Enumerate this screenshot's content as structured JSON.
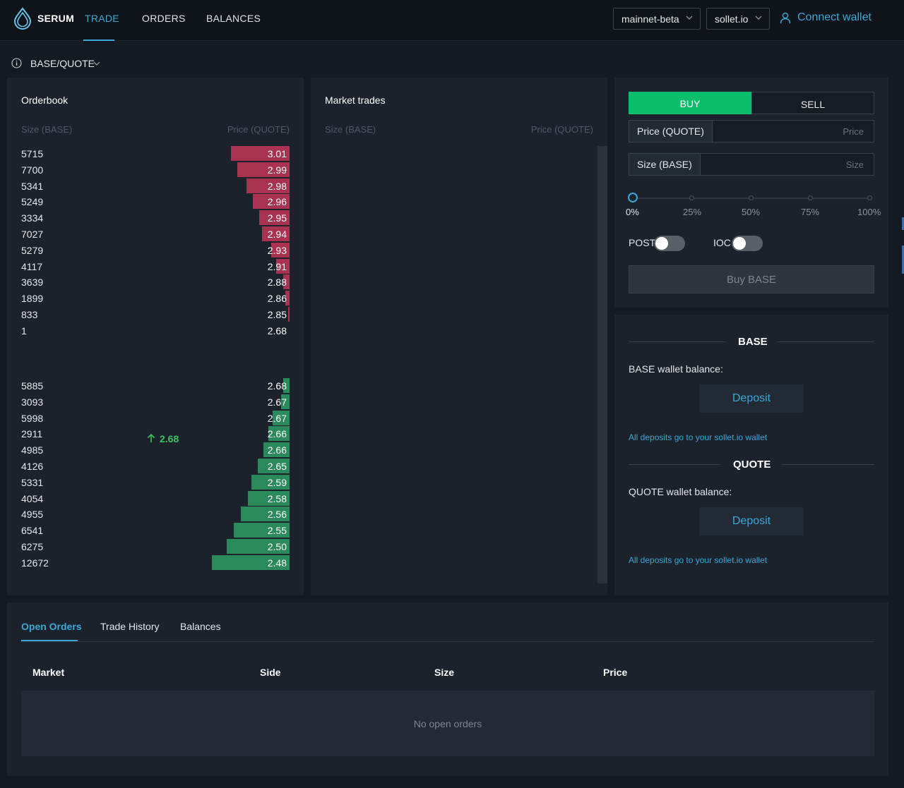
{
  "header": {
    "brand": "SERUM",
    "nav": [
      "TRADE",
      "ORDERS",
      "BALANCES"
    ],
    "network": "mainnet-beta",
    "wallet_provider": "sollet.io",
    "connect_label": "Connect wallet"
  },
  "market": {
    "name": "BASE/QUOTE"
  },
  "orderbook": {
    "title": "Orderbook",
    "size_header": "Size (BASE)",
    "price_header": "Price (QUOTE)",
    "asks": [
      {
        "size": "5715",
        "price": "3.01",
        "depth": 0.75
      },
      {
        "size": "7700",
        "price": "2.99",
        "depth": 0.67
      },
      {
        "size": "5341",
        "price": "2.98",
        "depth": 0.55
      },
      {
        "size": "5249",
        "price": "2.96",
        "depth": 0.47
      },
      {
        "size": "3334",
        "price": "2.95",
        "depth": 0.39
      },
      {
        "size": "7027",
        "price": "2.94",
        "depth": 0.35
      },
      {
        "size": "5279",
        "price": "2.93",
        "depth": 0.24
      },
      {
        "size": "4117",
        "price": "2.91",
        "depth": 0.17
      },
      {
        "size": "3639",
        "price": "2.88",
        "depth": 0.08
      },
      {
        "size": "1899",
        "price": "2.86",
        "depth": 0.05
      },
      {
        "size": "833",
        "price": "2.85",
        "depth": 0.02
      },
      {
        "size": "1",
        "price": "2.68",
        "depth": 0.0
      }
    ],
    "mid_price": "2.68",
    "bids": [
      {
        "size": "5885",
        "price": "2.68",
        "depth": 0.08
      },
      {
        "size": "3093",
        "price": "2.67",
        "depth": 0.11
      },
      {
        "size": "5998",
        "price": "2.67",
        "depth": 0.22
      },
      {
        "size": "2911",
        "price": "2.66",
        "depth": 0.27
      },
      {
        "size": "4985",
        "price": "2.66",
        "depth": 0.34
      },
      {
        "size": "4126",
        "price": "2.65",
        "depth": 0.41
      },
      {
        "size": "5331",
        "price": "2.59",
        "depth": 0.49
      },
      {
        "size": "4054",
        "price": "2.58",
        "depth": 0.54
      },
      {
        "size": "4955",
        "price": "2.56",
        "depth": 0.63
      },
      {
        "size": "6541",
        "price": "2.55",
        "depth": 0.72
      },
      {
        "size": "6275",
        "price": "2.50",
        "depth": 0.81
      },
      {
        "size": "12672",
        "price": "2.48",
        "depth": 1.0
      }
    ]
  },
  "market_trades": {
    "title": "Market trades",
    "size_header": "Size (BASE)",
    "price_header": "Price (QUOTE)"
  },
  "order_form": {
    "buy_label": "BUY",
    "sell_label": "SELL",
    "price_addon": "Price (QUOTE)",
    "price_placeholder": "Price",
    "size_addon": "Size (BASE)",
    "size_placeholder": "Size",
    "slider_marks": [
      "0%",
      "25%",
      "50%",
      "75%",
      "100%"
    ],
    "slider_value": 0,
    "post_label": "POST",
    "ioc_label": "IOC",
    "submit_label": "Buy BASE"
  },
  "balances": {
    "base": {
      "title": "BASE",
      "wallet_label": "BASE wallet balance:",
      "deposit_label": "Deposit",
      "note": "All deposits go to your sollet.io wallet"
    },
    "quote": {
      "title": "QUOTE",
      "wallet_label": "QUOTE wallet balance:",
      "deposit_label": "Deposit",
      "note": "All deposits go to your sollet.io wallet"
    }
  },
  "bottom": {
    "tabs": [
      "Open Orders",
      "Trade History",
      "Balances"
    ],
    "columns": [
      "Market",
      "Side",
      "Size",
      "Price"
    ],
    "empty_text": "No open orders"
  },
  "colors": {
    "accent": "#3aa8d8",
    "buy": "#0bbe6b",
    "ask_bar": "#a8324f",
    "bid_bar": "#2b8a5c",
    "mid_up": "#3cc35e"
  }
}
